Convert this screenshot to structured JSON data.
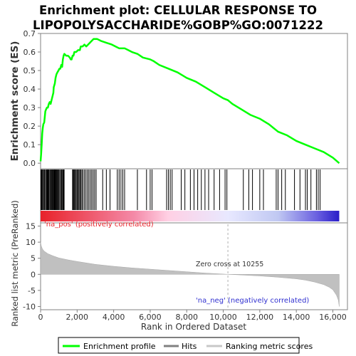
{
  "figure": {
    "title_line1": "Enrichment plot: CELLULAR RESPONSE TO",
    "title_line2": "LIPOPOLYSACCHARIDE%GOBP%GO:0071222"
  },
  "chart_data": [
    {
      "type": "line",
      "panel": "enrichment-profile",
      "ylabel": "Enrichment score (ES)",
      "xlim": [
        0,
        16800
      ],
      "ylim": [
        -0.03,
        0.7
      ],
      "yticks": [
        0.0,
        0.1,
        0.2,
        0.3,
        0.4,
        0.5,
        0.6,
        0.7
      ],
      "grid": false,
      "series": [
        {
          "name": "Enrichment profile",
          "color": "#00ff00",
          "points": [
            [
              0,
              0.01
            ],
            [
              30,
              0.05
            ],
            [
              60,
              0.1
            ],
            [
              90,
              0.16
            ],
            [
              120,
              0.19
            ],
            [
              150,
              0.21
            ],
            [
              200,
              0.22
            ],
            [
              230,
              0.25
            ],
            [
              260,
              0.28
            ],
            [
              300,
              0.29
            ],
            [
              350,
              0.3
            ],
            [
              400,
              0.3
            ],
            [
              450,
              0.32
            ],
            [
              500,
              0.33
            ],
            [
              550,
              0.32
            ],
            [
              600,
              0.34
            ],
            [
              650,
              0.36
            ],
            [
              700,
              0.38
            ],
            [
              720,
              0.41
            ],
            [
              780,
              0.43
            ],
            [
              820,
              0.46
            ],
            [
              870,
              0.48
            ],
            [
              920,
              0.49
            ],
            [
              980,
              0.5
            ],
            [
              1030,
              0.51
            ],
            [
              1080,
              0.51
            ],
            [
              1130,
              0.53
            ],
            [
              1180,
              0.52
            ],
            [
              1220,
              0.56
            ],
            [
              1260,
              0.58
            ],
            [
              1300,
              0.59
            ],
            [
              1400,
              0.58
            ],
            [
              1500,
              0.58
            ],
            [
              1600,
              0.57
            ],
            [
              1650,
              0.56
            ],
            [
              1700,
              0.56
            ],
            [
              1750,
              0.58
            ],
            [
              1800,
              0.58
            ],
            [
              1850,
              0.6
            ],
            [
              1950,
              0.6
            ],
            [
              2050,
              0.61
            ],
            [
              2150,
              0.61
            ],
            [
              2200,
              0.63
            ],
            [
              2300,
              0.63
            ],
            [
              2400,
              0.64
            ],
            [
              2500,
              0.63
            ],
            [
              2600,
              0.64
            ],
            [
              2700,
              0.65
            ],
            [
              2800,
              0.66
            ],
            [
              2900,
              0.67
            ],
            [
              3000,
              0.67
            ],
            [
              3100,
              0.67
            ],
            [
              3300,
              0.66
            ],
            [
              3600,
              0.65
            ],
            [
              3900,
              0.64
            ],
            [
              4100,
              0.63
            ],
            [
              4300,
              0.62
            ],
            [
              4600,
              0.62
            ],
            [
              4800,
              0.61
            ],
            [
              5000,
              0.6
            ],
            [
              5300,
              0.59
            ],
            [
              5600,
              0.57
            ],
            [
              6000,
              0.56
            ],
            [
              6200,
              0.55
            ],
            [
              6500,
              0.53
            ],
            [
              7000,
              0.51
            ],
            [
              7500,
              0.49
            ],
            [
              8000,
              0.46
            ],
            [
              8500,
              0.44
            ],
            [
              9000,
              0.41
            ],
            [
              9500,
              0.38
            ],
            [
              10000,
              0.35
            ],
            [
              10255,
              0.34
            ],
            [
              10500,
              0.32
            ],
            [
              11000,
              0.29
            ],
            [
              11500,
              0.26
            ],
            [
              12000,
              0.24
            ],
            [
              12500,
              0.21
            ],
            [
              13000,
              0.17
            ],
            [
              13500,
              0.15
            ],
            [
              14000,
              0.12
            ],
            [
              14500,
              0.1
            ],
            [
              15000,
              0.08
            ],
            [
              15500,
              0.06
            ],
            [
              16000,
              0.03
            ],
            [
              16350,
              0.0
            ]
          ]
        }
      ]
    },
    {
      "type": "scatter",
      "panel": "hits",
      "series": [
        {
          "name": "Hits",
          "color": "#000000",
          "x": [
            20,
            60,
            100,
            150,
            190,
            230,
            280,
            330,
            370,
            410,
            450,
            500,
            540,
            580,
            620,
            650,
            690,
            720,
            760,
            800,
            840,
            880,
            920,
            960,
            1000,
            1050,
            1100,
            1150,
            1200,
            1230,
            1260,
            1290,
            1750,
            1780,
            1820,
            1860,
            1900,
            1950,
            2000,
            2050,
            2100,
            2150,
            2200,
            2260,
            2320,
            2400,
            2480,
            2560,
            2640,
            2720,
            2800,
            2880,
            2960,
            3040,
            3400,
            3600,
            3800,
            4200,
            4300,
            4400,
            4500,
            4600,
            5300,
            5800,
            6000,
            6100,
            6900,
            7000,
            7100,
            7200,
            7700,
            7900,
            8200,
            8400,
            8600,
            8800,
            9000,
            9200,
            9500,
            9800,
            10100,
            10200,
            11100,
            11400,
            11600,
            12000,
            12200,
            12900,
            13000,
            13200,
            13400,
            13900,
            14200,
            14500,
            14600,
            14800,
            15100,
            15200,
            15300
          ]
        }
      ]
    },
    {
      "type": "heatmap",
      "panel": "ranking-colorbar",
      "zero_cross_rank": 10255,
      "colors": {
        "positive_strong": "#e8222a",
        "positive_weak": "#ffd0e4",
        "neutral": "#e8e8ff",
        "negative_weak": "#c0c8f2",
        "negative_strong": "#2a1ec8"
      }
    },
    {
      "type": "area",
      "panel": "ranked-metric",
      "ylabel": "Ranked list metric (PreRanked)",
      "xlabel": "Rank in Ordered Dataset",
      "xlim": [
        0,
        16800
      ],
      "ylim": [
        -11,
        16
      ],
      "yticks": [
        -10,
        -5,
        0,
        5,
        10,
        15
      ],
      "xticks": [
        0,
        2000,
        4000,
        6000,
        8000,
        10000,
        12000,
        14000,
        16000
      ],
      "xtick_labels": [
        "0",
        "2,000",
        "4,000",
        "6,000",
        "8,000",
        "10,000",
        "12,000",
        "14,000",
        "16,000"
      ],
      "fill_color": "#c0c0c0",
      "series": [
        {
          "name": "Ranking metric scores",
          "points": [
            [
              0,
              10.0
            ],
            [
              40,
              8.8
            ],
            [
              100,
              7.9
            ],
            [
              200,
              7.2
            ],
            [
              400,
              6.4
            ],
            [
              700,
              5.7
            ],
            [
              1000,
              5.1
            ],
            [
              1500,
              4.5
            ],
            [
              2000,
              4.0
            ],
            [
              3000,
              3.1
            ],
            [
              4000,
              2.5
            ],
            [
              5000,
              2.0
            ],
            [
              6000,
              1.6
            ],
            [
              7000,
              1.2
            ],
            [
              8000,
              0.8
            ],
            [
              9000,
              0.4
            ],
            [
              10255,
              0.0
            ],
            [
              11000,
              -0.2
            ],
            [
              12000,
              -0.5
            ],
            [
              13000,
              -0.9
            ],
            [
              14000,
              -1.4
            ],
            [
              14500,
              -1.8
            ],
            [
              15000,
              -2.4
            ],
            [
              15500,
              -3.2
            ],
            [
              15800,
              -4.0
            ],
            [
              16000,
              -4.8
            ],
            [
              16200,
              -6.5
            ],
            [
              16300,
              -8.0
            ],
            [
              16350,
              -10.0
            ]
          ]
        }
      ],
      "annotations": {
        "positive": "'na_pos' (positively correlated)",
        "zero_cross": "Zero cross at 10255",
        "negative": "'na_neg' (negatively correlated)"
      },
      "annotation_colors": {
        "positive": "#e8222a",
        "negative": "#3030d0"
      }
    }
  ],
  "legend": {
    "placement": "bottom",
    "items": [
      {
        "label": "Enrichment profile",
        "color": "#00ff00",
        "style": "line"
      },
      {
        "label": "Hits",
        "color": "#808080",
        "style": "line"
      },
      {
        "label": "Ranking metric scores",
        "color": "#c8c8c8",
        "style": "line"
      }
    ]
  }
}
